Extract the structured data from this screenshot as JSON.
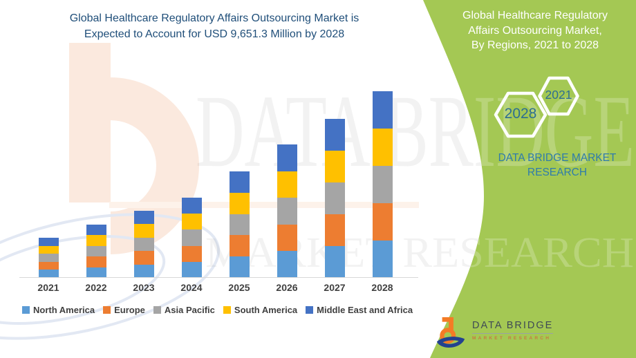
{
  "header": {
    "line1": "Global Healthcare Regulatory Affairs Outsourcing Market is",
    "line2": "Expected to Account for USD 9,651.3 Million by 2028",
    "color": "#1f4e79"
  },
  "side_panel": {
    "bg_color": "#a4c854",
    "heading_lines": [
      "Global Healthcare Regulatory",
      "Affairs Outsourcing Market,",
      "By Regions, 2021 to 2028"
    ],
    "heading_color": "#ffffff",
    "hexagons": [
      {
        "label": "2028"
      },
      {
        "label": "2021"
      }
    ],
    "hexagon_label_color": "#2d6e91",
    "brand_line1": "DATA BRIDGE MARKET",
    "brand_line2": "RESEARCH",
    "brand_color": "#2e7bac"
  },
  "watermark": {
    "line1": "DATA BRIDGE",
    "line2": "MARKET RESEARCH"
  },
  "logo": {
    "title": "DATA BRIDGE",
    "subtitle": "MARKET RESEARCH",
    "orange": "#f47b25",
    "blue": "#23418f"
  },
  "chart_data": {
    "type": "bar",
    "stacked": true,
    "title": "Global Healthcare Regulatory Affairs Outsourcing Market, By Regions, 2021 to 2028",
    "unit": "USD Million",
    "categories": [
      "2021",
      "2022",
      "2023",
      "2024",
      "2025",
      "2026",
      "2027",
      "2028"
    ],
    "series": [
      {
        "name": "North America",
        "color": "#5B9BD5",
        "values": [
          415,
          550,
          695,
          830,
          1100,
          1380,
          1645,
          1930.3
        ]
      },
      {
        "name": "Europe",
        "color": "#ED7D31",
        "values": [
          415,
          550,
          695,
          830,
          1100,
          1380,
          1645,
          1930.3
        ]
      },
      {
        "name": "Asia Pacific",
        "color": "#A5A5A5",
        "values": [
          415,
          550,
          695,
          830,
          1100,
          1380,
          1645,
          1930.3
        ]
      },
      {
        "name": "South America",
        "color": "#FFC000",
        "values": [
          415,
          550,
          695,
          830,
          1100,
          1380,
          1645,
          1930.3
        ]
      },
      {
        "name": "Middle East and Africa",
        "color": "#4472C4",
        "values": [
          415,
          550,
          695,
          830,
          1100,
          1380,
          1645,
          1930.1
        ]
      }
    ],
    "totals": [
      2075,
      2750,
      3475,
      4150,
      5500,
      6900,
      8225,
      9651.3
    ],
    "ylim": [
      0,
      9700
    ],
    "x_axis_labels_visible": true,
    "y_axis_visible": false,
    "gridlines": false,
    "legend_position": "bottom"
  }
}
